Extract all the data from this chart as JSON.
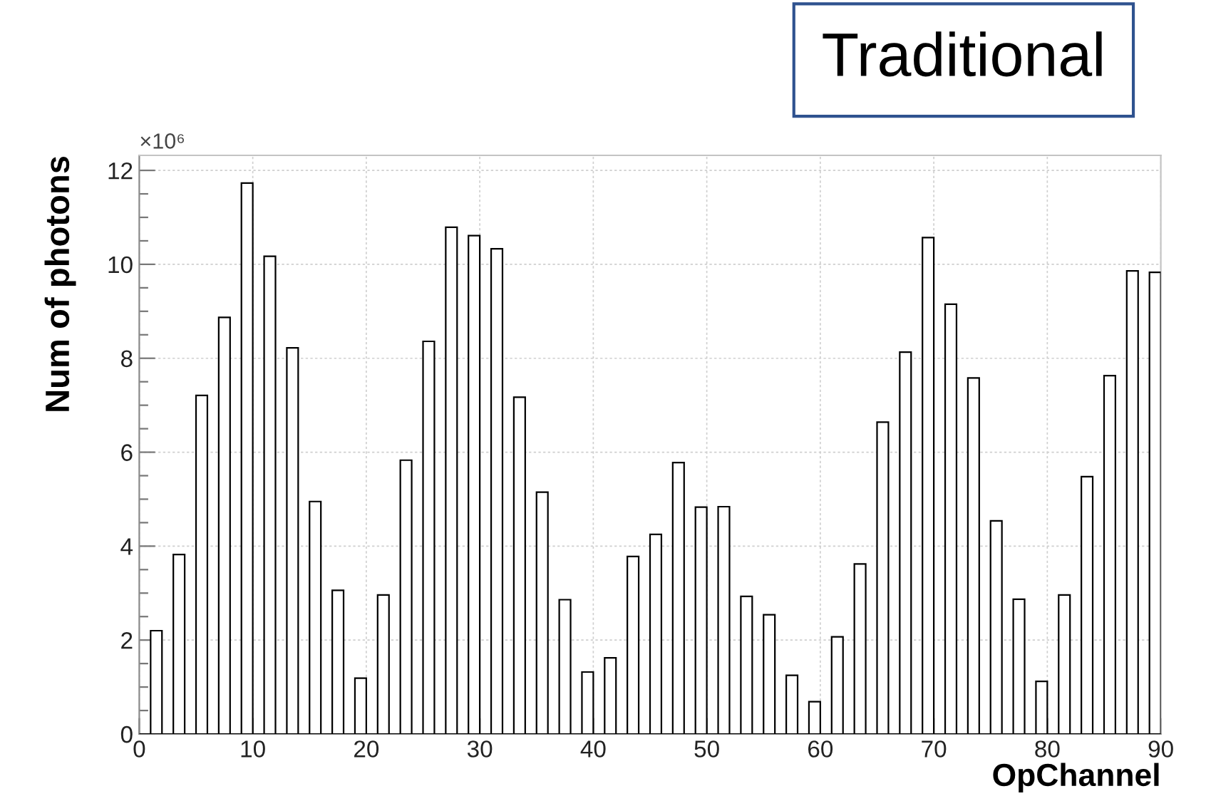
{
  "chart_data": {
    "type": "histogram",
    "xlabel": "OpChannel",
    "ylabel": "Num of photons",
    "annotations": [
      "×10⁶",
      "Traditional"
    ],
    "bins": [
      0,
      1,
      2,
      3,
      4,
      5,
      6,
      7,
      8,
      9,
      10,
      11,
      12,
      13,
      14,
      15,
      16,
      17,
      18,
      19,
      20,
      21,
      22,
      23,
      24,
      25,
      26,
      27,
      28,
      29,
      30,
      31,
      32,
      33,
      34,
      35,
      36,
      37,
      38,
      39,
      40,
      41,
      42,
      43,
      44,
      45,
      46,
      47,
      48,
      49,
      50,
      51,
      52,
      53,
      54,
      55,
      56,
      57,
      58,
      59,
      60,
      61,
      62,
      63,
      64,
      65,
      66,
      67,
      68,
      69,
      70,
      71,
      72,
      73,
      74,
      75,
      76,
      77,
      78,
      79,
      80,
      81,
      82,
      83,
      84,
      85,
      86,
      87,
      88,
      89,
      90
    ],
    "values": [
      0,
      2.2,
      0,
      3.82,
      0,
      7.21,
      0,
      8.87,
      0,
      11.73,
      0,
      10.17,
      0,
      8.22,
      0,
      4.95,
      0,
      3.06,
      0,
      1.19,
      0,
      2.96,
      0,
      5.83,
      0,
      8.36,
      0,
      10.79,
      0,
      10.61,
      0,
      10.33,
      0,
      7.17,
      0,
      5.15,
      0,
      2.86,
      0,
      1.32,
      0,
      1.62,
      0,
      3.78,
      0,
      4.25,
      0,
      5.78,
      0,
      4.83,
      0,
      4.84,
      0,
      2.93,
      0,
      2.54,
      0,
      1.25,
      0,
      0.69,
      0,
      2.07,
      0,
      3.62,
      0,
      6.64,
      0,
      8.13,
      0,
      10.57,
      0,
      9.15,
      0,
      7.58,
      0,
      4.54,
      0,
      2.87,
      0,
      1.12,
      0,
      2.96,
      0,
      5.48,
      0,
      7.63,
      0,
      9.86,
      0,
      9.83
    ],
    "color": "#000000",
    "xlim": [
      0,
      90
    ],
    "xticks": [
      0,
      10,
      20,
      30,
      40,
      50,
      60,
      70,
      80,
      90
    ],
    "ylim": [
      0,
      12.32
    ],
    "yticks": [
      0,
      2,
      4,
      6,
      8,
      10,
      12
    ],
    "grid": true
  }
}
